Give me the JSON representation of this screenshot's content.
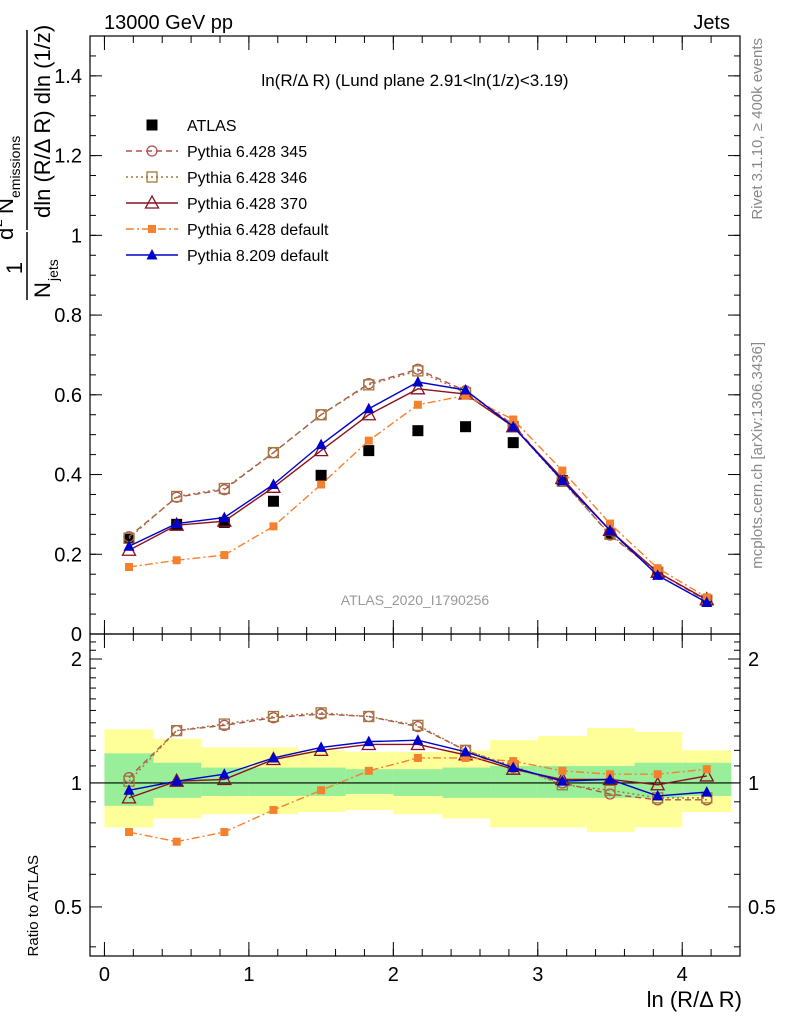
{
  "header": {
    "process": "13000 GeV pp",
    "category": "Jets",
    "side_version": "Rivet 3.1.10, ≥ 400k events",
    "side_site": "mcplots.cern.ch [arXiv:1306.3436]"
  },
  "chart_data": {
    "type": "line",
    "title": "ln(R/Δ R) (Lund plane 2.91<ln(1/z)<3.19)",
    "watermark": "ATLAS_2020_I1790256",
    "xlabel": "ln (R/Δ R)",
    "ylabel": "1/N_jets d²N_emissions / dln(R/Δ R) dln(1/z)",
    "ylabel_parts": {
      "frac_num": "1",
      "frac_den": "N",
      "frac_den_sub": "jets",
      "deriv_num_pre": "d",
      "deriv_num_sup": "2",
      "deriv_num_var": "N",
      "deriv_num_sub": "emissions",
      "deriv_den": "dln (R/Δ R) dln (1/z)"
    },
    "ratio_ylabel": "Ratio to ATLAS",
    "xlim": [
      -0.1,
      4.4
    ],
    "ylim": [
      0,
      1.5
    ],
    "ratio_ylim": [
      0.38,
      2.3
    ],
    "x_ticks": [
      0,
      1,
      2,
      3,
      4
    ],
    "x_tick_labels": [
      "0",
      "1",
      "2",
      "3",
      "4"
    ],
    "y_ticks": [
      0,
      0.2,
      0.4,
      0.6,
      0.8,
      1,
      1.2,
      1.4
    ],
    "y_tick_labels": [
      "0",
      "0.2",
      "0.4",
      "0.6",
      "0.8",
      "1",
      "1.2",
      "1.4"
    ],
    "ratio_ticks": [
      0.5,
      1,
      2
    ],
    "ratio_tick_labels": [
      "0.5",
      "1",
      "2"
    ],
    "legend_position": "top-left",
    "x": [
      0.17,
      0.5,
      0.83,
      1.17,
      1.5,
      1.83,
      2.17,
      2.5,
      2.83,
      3.17,
      3.5,
      3.83,
      4.17
    ],
    "bin_edges": [
      0,
      0.34,
      0.67,
      1.0,
      1.34,
      1.67,
      2.0,
      2.34,
      2.67,
      3.0,
      3.34,
      3.67,
      4.0,
      4.34
    ],
    "ratio_band_inner": [
      [
        0.88,
        1.18
      ],
      [
        0.92,
        1.12
      ],
      [
        0.93,
        1.09
      ],
      [
        0.93,
        1.09
      ],
      [
        0.93,
        1.09
      ],
      [
        0.94,
        1.08
      ],
      [
        0.93,
        1.08
      ],
      [
        0.92,
        1.09
      ],
      [
        0.92,
        1.1
      ],
      [
        0.92,
        1.1
      ],
      [
        0.92,
        1.1
      ],
      [
        0.92,
        1.12
      ],
      [
        0.93,
        1.12
      ]
    ],
    "ratio_band_outer": [
      [
        0.78,
        1.35
      ],
      [
        0.82,
        1.28
      ],
      [
        0.84,
        1.22
      ],
      [
        0.84,
        1.22
      ],
      [
        0.85,
        1.2
      ],
      [
        0.86,
        1.19
      ],
      [
        0.84,
        1.19
      ],
      [
        0.82,
        1.2
      ],
      [
        0.78,
        1.27
      ],
      [
        0.78,
        1.3
      ],
      [
        0.76,
        1.36
      ],
      [
        0.78,
        1.33
      ],
      [
        0.85,
        1.2
      ]
    ],
    "series": [
      {
        "name": "ATLAS",
        "style": "data",
        "color": "#000000",
        "values": [
          0.24,
          0.275,
          0.28,
          0.333,
          0.398,
          0.46,
          0.51,
          0.52,
          0.48,
          0.385,
          0.25,
          0.155,
          0.085
        ],
        "ratio": [
          1,
          1,
          1,
          1,
          1,
          1,
          1,
          1,
          1,
          1,
          1,
          1,
          1
        ]
      },
      {
        "name": "Pythia 6.428 345",
        "style": "circle-open",
        "dash": "6,4",
        "color": "#b35050",
        "values": [
          0.244,
          0.343,
          0.362,
          0.455,
          0.55,
          0.628,
          0.664,
          0.61,
          0.525,
          0.385,
          0.248,
          0.155,
          0.083
        ],
        "ratio": [
          1.03,
          1.34,
          1.38,
          1.44,
          1.47,
          1.45,
          1.37,
          1.2,
          1.09,
          1.0,
          0.94,
          0.91,
          0.91
        ]
      },
      {
        "name": "Pythia 6.428 346",
        "style": "square-open",
        "dash": "2,3",
        "color": "#a07838",
        "values": [
          0.24,
          0.345,
          0.365,
          0.455,
          0.55,
          0.625,
          0.66,
          0.605,
          0.52,
          0.383,
          0.25,
          0.155,
          0.085
        ],
        "ratio": [
          1.01,
          1.34,
          1.39,
          1.45,
          1.48,
          1.45,
          1.38,
          1.2,
          1.1,
          0.99,
          0.96,
          0.92,
          0.92
        ]
      },
      {
        "name": "Pythia 6.428 370",
        "style": "triangle-open",
        "dash": "",
        "color": "#8a1020",
        "values": [
          0.21,
          0.273,
          0.283,
          0.368,
          0.46,
          0.55,
          0.615,
          0.602,
          0.52,
          0.39,
          0.26,
          0.155,
          0.086
        ],
        "ratio": [
          0.92,
          1.01,
          1.02,
          1.14,
          1.2,
          1.24,
          1.24,
          1.17,
          1.08,
          1.02,
          1.02,
          0.99,
          1.04
        ]
      },
      {
        "name": "Pythia 6.428 default",
        "style": "square-filled",
        "dash": "8,3,2,3",
        "color": "#f5812f",
        "values": [
          0.168,
          0.185,
          0.198,
          0.27,
          0.375,
          0.485,
          0.575,
          0.598,
          0.538,
          0.41,
          0.277,
          0.165,
          0.092
        ],
        "ratio": [
          0.76,
          0.72,
          0.76,
          0.86,
          0.96,
          1.07,
          1.15,
          1.15,
          1.13,
          1.07,
          1.05,
          1.05,
          1.08
        ]
      },
      {
        "name": "Pythia 8.209 default",
        "style": "triangle-filled",
        "dash": "",
        "color": "#0000cc",
        "values": [
          0.22,
          0.277,
          0.292,
          0.375,
          0.475,
          0.565,
          0.632,
          0.612,
          0.52,
          0.385,
          0.26,
          0.147,
          0.079
        ],
        "ratio": [
          0.96,
          1.01,
          1.05,
          1.15,
          1.22,
          1.26,
          1.27,
          1.19,
          1.09,
          1.01,
          1.02,
          0.93,
          0.95
        ]
      }
    ]
  }
}
